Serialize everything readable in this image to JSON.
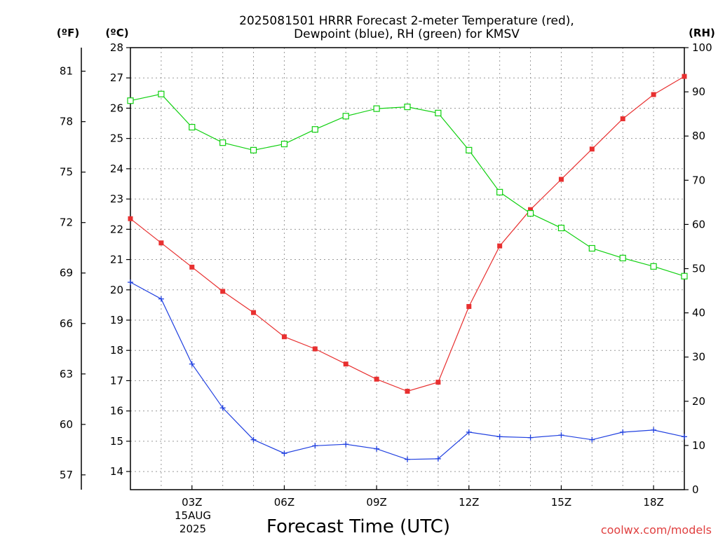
{
  "chart_data": {
    "type": "line",
    "title_lines": [
      "2025081501 HRRR Forecast 2-meter Temperature (red),",
      "Dewpoint (blue), RH (green) for KMSV"
    ],
    "xlabel": "Forecast Time (UTC)",
    "credit": "coolwx.com/models",
    "date_label_lines": [
      "15AUG",
      "2025"
    ],
    "unit_labels": {
      "fahrenheit": "(ºF)",
      "celsius": "(ºC)",
      "rh": "(RH)"
    },
    "x": [
      "01Z",
      "02Z",
      "03Z",
      "04Z",
      "05Z",
      "06Z",
      "07Z",
      "08Z",
      "09Z",
      "10Z",
      "11Z",
      "12Z",
      "13Z",
      "14Z",
      "15Z",
      "16Z",
      "17Z",
      "18Z",
      "19Z"
    ],
    "x_tick_labels": [
      "03Z",
      "06Z",
      "09Z",
      "12Z",
      "15Z",
      "18Z"
    ],
    "x_tick_indices": [
      2,
      5,
      8,
      11,
      14,
      17
    ],
    "celsius_axis": {
      "ylim": [
        13.4,
        28
      ],
      "ticks": [
        14,
        15,
        16,
        17,
        18,
        19,
        20,
        21,
        22,
        23,
        24,
        25,
        26,
        27,
        28
      ]
    },
    "fahrenheit_axis": {
      "ticks": [
        57,
        60,
        63,
        66,
        69,
        72,
        75,
        78,
        81
      ]
    },
    "rh_axis": {
      "ylim": [
        0,
        100
      ],
      "ticks": [
        0,
        10,
        20,
        30,
        40,
        50,
        60,
        70,
        80,
        90,
        100
      ]
    },
    "grid": true,
    "series": [
      {
        "name": "Temperature",
        "axis": "celsius",
        "color": "#e83030",
        "marker": "filled-square",
        "values": [
          22.35,
          21.55,
          20.75,
          19.95,
          19.25,
          18.45,
          18.05,
          17.55,
          17.05,
          16.65,
          16.95,
          19.45,
          21.45,
          22.65,
          23.65,
          24.65,
          25.65,
          26.45,
          27.05
        ]
      },
      {
        "name": "Dewpoint",
        "axis": "celsius",
        "color": "#2040e0",
        "marker": "plus",
        "values": [
          20.25,
          19.7,
          17.55,
          16.1,
          15.05,
          14.6,
          14.85,
          14.9,
          14.75,
          14.4,
          14.42,
          15.3,
          15.15,
          15.12,
          15.2,
          15.05,
          15.3,
          15.37,
          15.15
        ]
      },
      {
        "name": "RH",
        "axis": "rh",
        "color": "#10d010",
        "marker": "open-square",
        "values": [
          88,
          89.5,
          82,
          78.5,
          76.8,
          78.2,
          81.5,
          84.5,
          86.2,
          86.6,
          85.2,
          76.8,
          67.3,
          62.5,
          59.2,
          54.6,
          52.4,
          50.5,
          48.3
        ]
      }
    ]
  }
}
